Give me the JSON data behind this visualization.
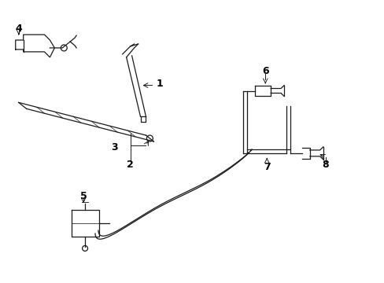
{
  "background_color": "#ffffff",
  "line_color": "#1a1a1a",
  "fig_width": 4.89,
  "fig_height": 3.6,
  "dpi": 100,
  "label_fontsize": 9,
  "lw": 0.9
}
